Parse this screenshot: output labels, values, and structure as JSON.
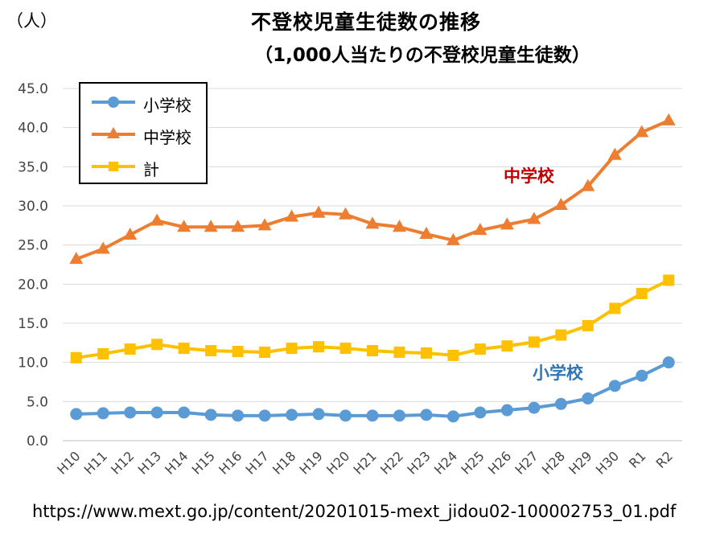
{
  "header": {
    "unit": "（人）",
    "title": "不登校児童生徒数の推移",
    "subtitle": "（1,000人当たりの不登校児童生徒数）"
  },
  "annotations": {
    "middle": "中学校",
    "elementary": "小学校"
  },
  "source": "https://www.mext.go.jp/content/20201015-mext_jidou02-100002753_01.pdf",
  "colors": {
    "elementary": "#5B9BD5",
    "middle": "#ED7D31",
    "total": "#FFC000",
    "annot_middle": "#C00000",
    "annot_elementary": "#2E75B6",
    "grid": "#D9D9D9"
  },
  "chart_data": {
    "type": "line",
    "title": "不登校児童生徒数の推移",
    "subtitle": "（1,000人当たりの不登校児童生徒数）",
    "ylabel": "（人）",
    "xlabel": "",
    "ylim": [
      0,
      45
    ],
    "yticks": [
      "0.0",
      "5.0",
      "10.0",
      "15.0",
      "20.0",
      "25.0",
      "30.0",
      "35.0",
      "40.0",
      "45.0"
    ],
    "grid": true,
    "legend_position": "top-left",
    "categories": [
      "H10",
      "H11",
      "H12",
      "H13",
      "H14",
      "H15",
      "H16",
      "H17",
      "H18",
      "H19",
      "H20",
      "H21",
      "H22",
      "H23",
      "H24",
      "H25",
      "H26",
      "H27",
      "H28",
      "H29",
      "H30",
      "R1",
      "R2"
    ],
    "series": [
      {
        "name": "小学校",
        "marker": "circle",
        "color": "#5B9BD5",
        "values": [
          3.4,
          3.5,
          3.6,
          3.6,
          3.6,
          3.3,
          3.2,
          3.2,
          3.3,
          3.4,
          3.2,
          3.2,
          3.2,
          3.3,
          3.1,
          3.6,
          3.9,
          4.2,
          4.7,
          5.4,
          7.0,
          8.3,
          10.0
        ]
      },
      {
        "name": "中学校",
        "marker": "triangle",
        "color": "#ED7D31",
        "values": [
          23.2,
          24.5,
          26.3,
          28.1,
          27.3,
          27.3,
          27.3,
          27.5,
          28.6,
          29.1,
          28.9,
          27.7,
          27.3,
          26.4,
          25.6,
          26.9,
          27.6,
          28.3,
          30.1,
          32.5,
          36.5,
          39.4,
          40.9
        ]
      },
      {
        "name": "計",
        "marker": "square",
        "color": "#FFC000",
        "values": [
          10.6,
          11.1,
          11.7,
          12.3,
          11.8,
          11.5,
          11.4,
          11.3,
          11.8,
          12.0,
          11.8,
          11.5,
          11.3,
          11.2,
          10.9,
          11.7,
          12.1,
          12.6,
          13.5,
          14.7,
          16.9,
          18.8,
          20.5
        ]
      }
    ]
  }
}
